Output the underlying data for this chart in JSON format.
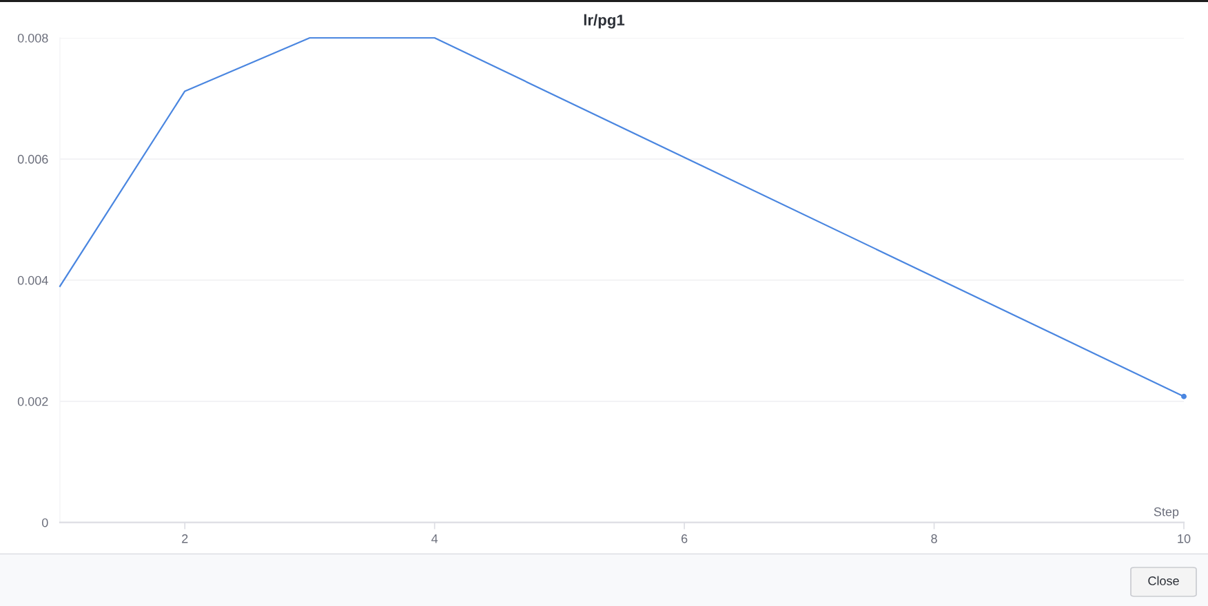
{
  "chart_data": {
    "type": "line",
    "title": "lr/pg1",
    "xlabel": "Step",
    "x": [
      1,
      2,
      3,
      4,
      10
    ],
    "series": [
      {
        "color": "#4a86e0",
        "values": [
          0.0039,
          0.00712,
          0.008,
          0.008,
          0.00208
        ]
      },
      {
        "type": "scatter",
        "color": "#4a86e0",
        "marker": "circle",
        "x": [
          10
        ],
        "values": [
          0.00208
        ]
      }
    ],
    "xlim": [
      1,
      10
    ],
    "xticks": [
      2,
      4,
      6,
      8,
      10
    ],
    "ylim": [
      0,
      0.008
    ],
    "yticks": [
      0,
      0.002,
      0.004,
      0.006,
      0.008
    ],
    "grid": "y",
    "line_style": "solid",
    "annotations": [
      "Close"
    ]
  }
}
